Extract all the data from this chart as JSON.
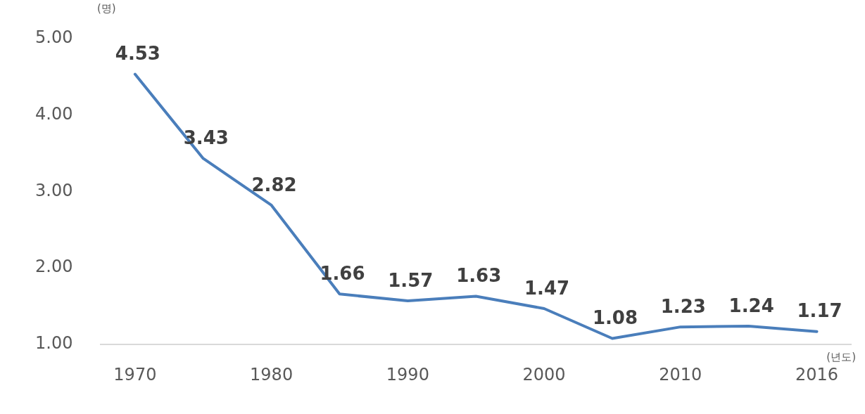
{
  "chart_data": {
    "type": "line",
    "ylabel": "(명)",
    "xlabel": "(년도)",
    "categories": [
      "1970",
      null,
      "1980",
      null,
      "1990",
      null,
      "2000",
      null,
      "2010",
      null,
      "2016"
    ],
    "series": [
      {
        "color": "#4a7ebb",
        "values": [
          4.53,
          3.43,
          2.82,
          1.66,
          1.57,
          1.63,
          1.47,
          1.08,
          1.23,
          1.24,
          1.17
        ]
      }
    ],
    "ylim": [
      1,
      5
    ],
    "yticks": [
      {
        "value": 1,
        "label": "1.00"
      },
      {
        "value": 2,
        "label": "2.00"
      },
      {
        "value": 3,
        "label": "3.00"
      },
      {
        "value": 4,
        "label": "4.00"
      },
      {
        "value": 5,
        "label": "5.00"
      }
    ],
    "data_labels": true,
    "grid": false,
    "legend": false,
    "marker": "none",
    "line_style": "solid"
  }
}
